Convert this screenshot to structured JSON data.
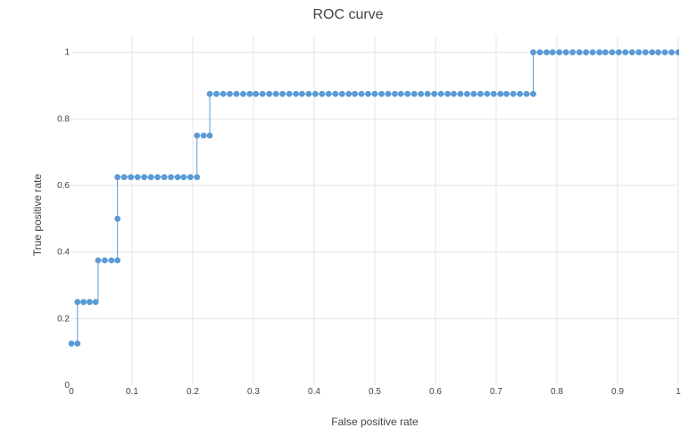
{
  "chart_data": {
    "type": "line",
    "title": "ROC curve",
    "xlabel": "False positive rate",
    "ylabel": "True positive rate",
    "xlim": [
      0,
      1
    ],
    "ylim": [
      0,
      1.05
    ],
    "x_ticks": [
      0,
      0.1,
      0.2,
      0.3,
      0.4,
      0.5,
      0.6,
      0.7,
      0.8,
      0.9,
      1
    ],
    "x_tick_labels": [
      "0",
      "0.1",
      "0.2",
      "0.3",
      "0.4",
      "0.5",
      "0.6",
      "0.7",
      "0.8",
      "0.9",
      "1"
    ],
    "y_ticks": [
      0,
      0.2,
      0.4,
      0.6,
      0.8,
      1
    ],
    "y_tick_labels": [
      "0",
      "0.2",
      "0.4",
      "0.6",
      "0.8",
      "1"
    ],
    "grid": true,
    "legend": "none",
    "color": "#5b9bd5",
    "series": [
      {
        "line_shape": "step",
        "markers": true,
        "x": [
          0,
          0.01,
          0.01,
          0.02,
          0.03,
          0.04,
          0.044,
          0.055,
          0.066,
          0.076,
          0.076,
          0.076,
          0.087,
          0.098,
          0.109,
          0.12,
          0.131,
          0.142,
          0.153,
          0.164,
          0.175,
          0.185,
          0.196,
          0.207,
          0.207,
          0.218,
          0.228,
          0.228,
          0.239,
          0.25,
          0.261,
          0.272,
          0.283,
          0.294,
          0.304,
          0.315,
          0.326,
          0.337,
          0.348,
          0.359,
          0.37,
          0.38,
          0.391,
          0.402,
          0.413,
          0.424,
          0.435,
          0.446,
          0.457,
          0.467,
          0.478,
          0.489,
          0.5,
          0.511,
          0.522,
          0.533,
          0.543,
          0.554,
          0.565,
          0.576,
          0.587,
          0.598,
          0.609,
          0.62,
          0.63,
          0.641,
          0.652,
          0.663,
          0.674,
          0.685,
          0.696,
          0.707,
          0.717,
          0.728,
          0.739,
          0.75,
          0.761,
          0.761,
          0.772,
          0.783,
          0.793,
          0.804,
          0.815,
          0.826,
          0.837,
          0.848,
          0.859,
          0.87,
          0.88,
          0.891,
          0.902,
          0.913,
          0.924,
          0.935,
          0.946,
          0.957,
          0.967,
          0.978,
          0.989,
          1
        ],
        "y": [
          0.125,
          0.125,
          0.25,
          0.25,
          0.25,
          0.25,
          0.375,
          0.375,
          0.375,
          0.375,
          0.5,
          0.625,
          0.625,
          0.625,
          0.625,
          0.625,
          0.625,
          0.625,
          0.625,
          0.625,
          0.625,
          0.625,
          0.625,
          0.625,
          0.75,
          0.75,
          0.75,
          0.875,
          0.875,
          0.875,
          0.875,
          0.875,
          0.875,
          0.875,
          0.875,
          0.875,
          0.875,
          0.875,
          0.875,
          0.875,
          0.875,
          0.875,
          0.875,
          0.875,
          0.875,
          0.875,
          0.875,
          0.875,
          0.875,
          0.875,
          0.875,
          0.875,
          0.875,
          0.875,
          0.875,
          0.875,
          0.875,
          0.875,
          0.875,
          0.875,
          0.875,
          0.875,
          0.875,
          0.875,
          0.875,
          0.875,
          0.875,
          0.875,
          0.875,
          0.875,
          0.875,
          0.875,
          0.875,
          0.875,
          0.875,
          0.875,
          0.875,
          1,
          1,
          1,
          1,
          1,
          1,
          1,
          1,
          1,
          1,
          1,
          1,
          1,
          1,
          1,
          1,
          1,
          1,
          1,
          1,
          1,
          1,
          1
        ]
      }
    ]
  }
}
